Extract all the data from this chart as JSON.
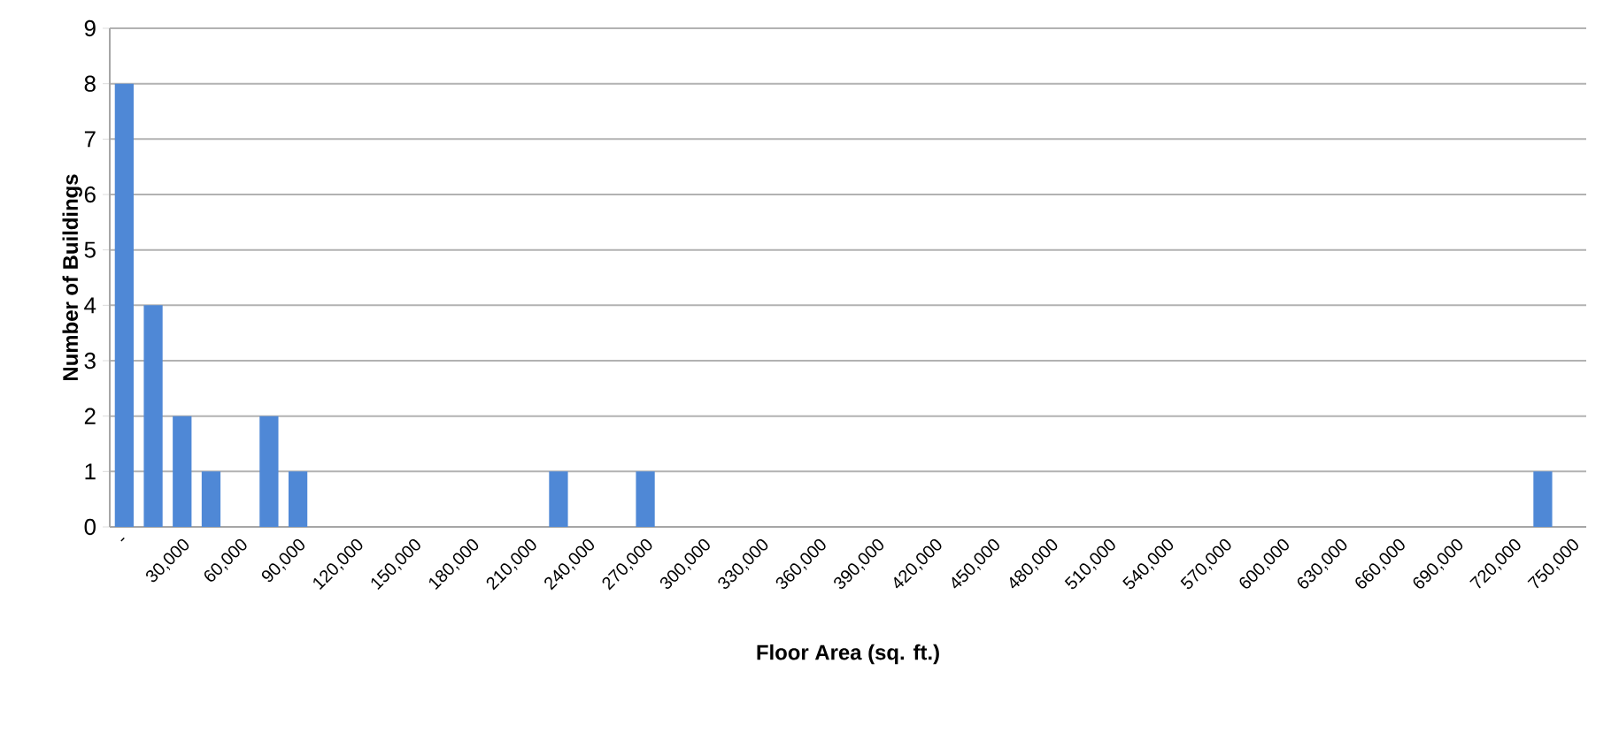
{
  "chart_data": {
    "type": "bar",
    "xlabel": "Floor Area (sq. ft.)",
    "ylabel": "Number of Buildings",
    "categories": [
      "-",
      null,
      "30,000",
      null,
      "60,000",
      null,
      "90,000",
      null,
      "120,000",
      null,
      "150,000",
      null,
      "180,000",
      null,
      "210,000",
      null,
      "240,000",
      null,
      "270,000",
      null,
      "300,000",
      null,
      "330,000",
      null,
      "360,000",
      null,
      "390,000",
      null,
      "420,000",
      null,
      "450,000",
      null,
      "480,000",
      null,
      "510,000",
      null,
      "540,000",
      null,
      "570,000",
      null,
      "600,000",
      null,
      "630,000",
      null,
      "660,000",
      null,
      "690,000",
      null,
      "720,000",
      null,
      "750,000"
    ],
    "values": [
      8,
      4,
      2,
      1,
      0,
      2,
      1,
      0,
      0,
      0,
      0,
      0,
      0,
      0,
      0,
      1,
      0,
      0,
      1,
      0,
      0,
      0,
      0,
      0,
      0,
      0,
      0,
      0,
      0,
      0,
      0,
      0,
      0,
      0,
      0,
      0,
      0,
      0,
      0,
      0,
      0,
      0,
      0,
      0,
      0,
      0,
      0,
      0,
      0,
      1,
      0
    ],
    "color": "#4f88d6",
    "ylim": [
      0,
      9
    ],
    "yticks": [
      0,
      1,
      2,
      3,
      4,
      5,
      6,
      7,
      8,
      9
    ],
    "grid": "y"
  }
}
